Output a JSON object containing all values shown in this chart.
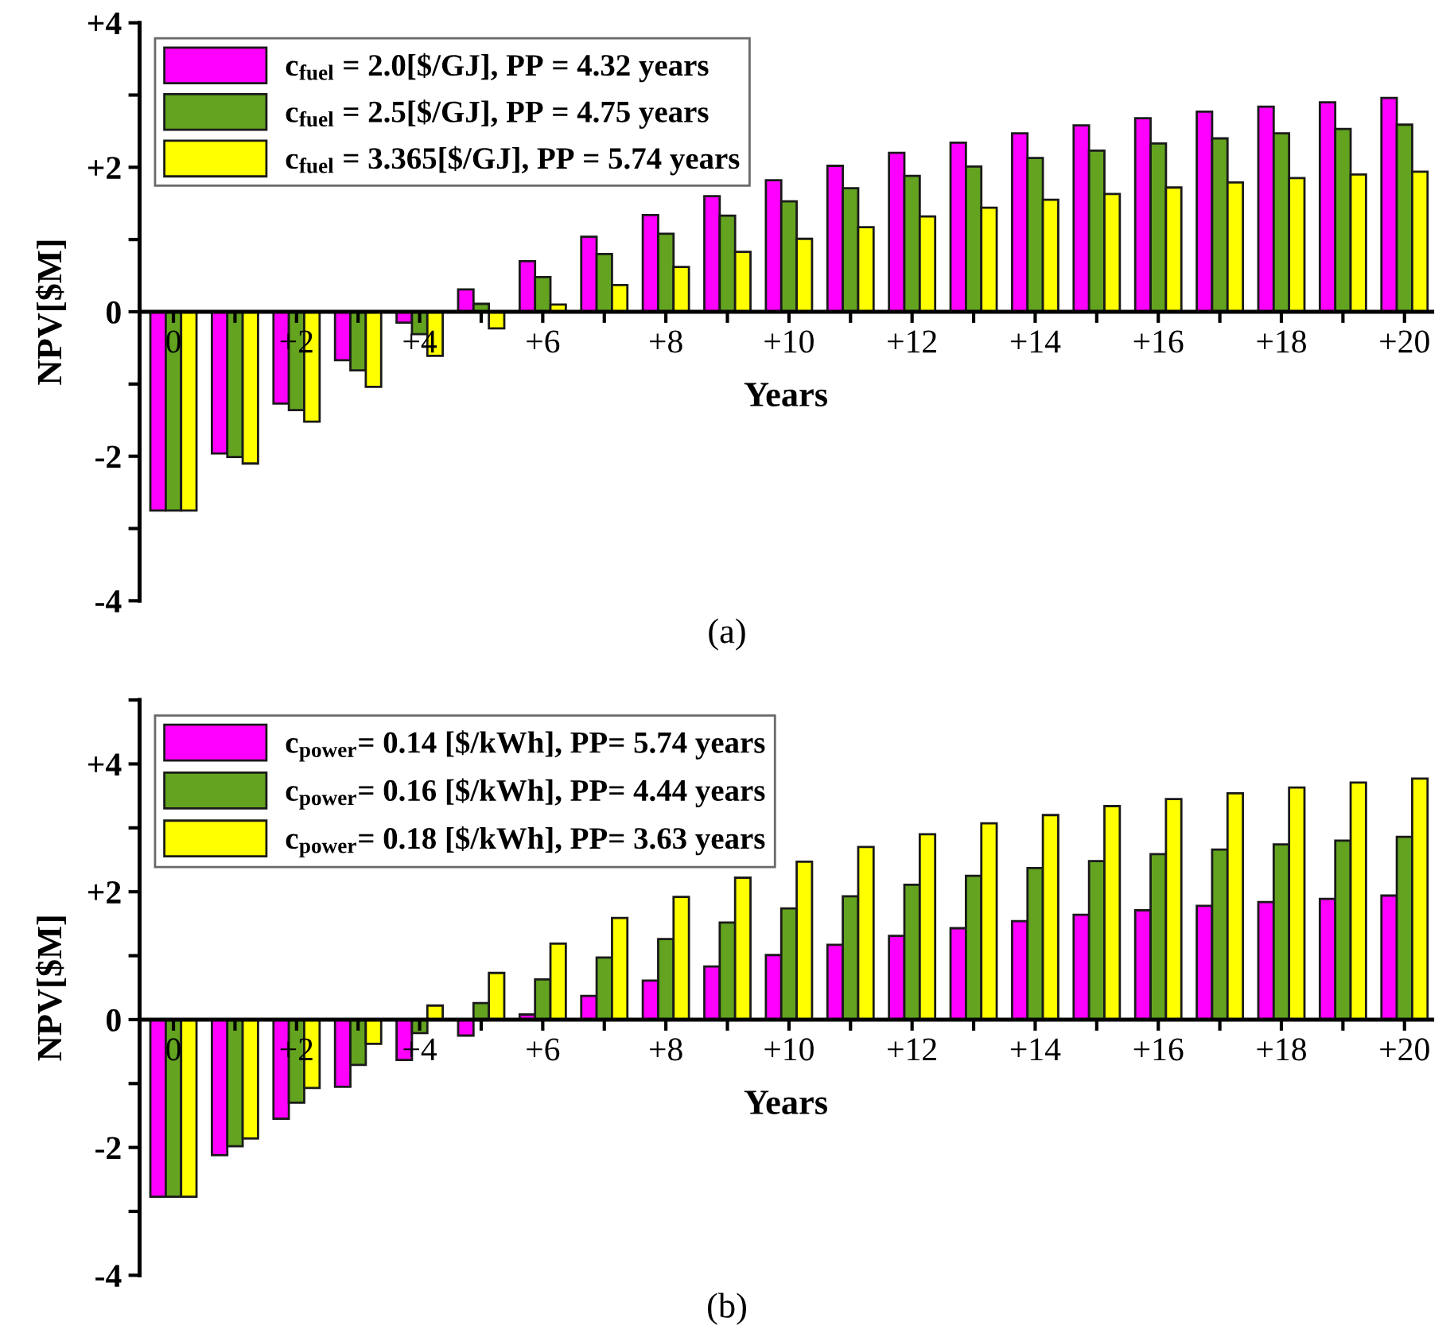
{
  "chart_data": [
    {
      "type": "bar",
      "xlabel": "Years",
      "ylabel": "NPV[$M]",
      "annotations": [
        "(a)"
      ],
      "legend": "top left",
      "x": [
        0,
        1,
        2,
        3,
        4,
        5,
        6,
        7,
        8,
        9,
        10,
        11,
        12,
        13,
        14,
        15,
        16,
        17,
        18,
        19,
        20
      ],
      "series": [
        {
          "name": "c$_{fuel}$ = 2.0[$/GJ], PP = 4.32 years",
          "color": "#ff00ff",
          "values": [
            -2.75,
            -1.96,
            -1.27,
            -0.67,
            -0.15,
            0.31,
            0.7,
            1.04,
            1.34,
            1.6,
            1.82,
            2.02,
            2.2,
            2.34,
            2.47,
            2.58,
            2.68,
            2.77,
            2.84,
            2.9,
            2.96
          ]
        },
        {
          "name": "c$_{fuel}$ = 2.5[$/GJ], PP = 4.75 years",
          "color": "#63a31f",
          "values": [
            -2.75,
            -2.01,
            -1.36,
            -0.81,
            -0.31,
            0.11,
            0.48,
            0.8,
            1.08,
            1.33,
            1.53,
            1.71,
            1.88,
            2.01,
            2.13,
            2.23,
            2.33,
            2.4,
            2.47,
            2.53,
            2.59
          ]
        },
        {
          "name": "c$_{fuel}$ = 3.365[$/GJ], PP = 5.74 years",
          "color": "#ffff00",
          "values": [
            -2.75,
            -2.1,
            -1.52,
            -1.04,
            -0.61,
            -0.23,
            0.1,
            0.37,
            0.62,
            0.83,
            1.01,
            1.17,
            1.32,
            1.44,
            1.55,
            1.63,
            1.72,
            1.79,
            1.85,
            1.9,
            1.94
          ]
        }
      ],
      "xlim": [
        -0.55,
        20.45
      ],
      "xticks": [
        {
          "value": 0,
          "label": "0"
        },
        {
          "value": 1,
          "label": null
        },
        {
          "value": 2,
          "label": "+2"
        },
        {
          "value": 3,
          "label": null
        },
        {
          "value": 4,
          "label": "+4"
        },
        {
          "value": 5,
          "label": null
        },
        {
          "value": 6,
          "label": "+6"
        },
        {
          "value": 7,
          "label": null
        },
        {
          "value": 8,
          "label": "+8"
        },
        {
          "value": 9,
          "label": null
        },
        {
          "value": 10,
          "label": "+10"
        },
        {
          "value": 11,
          "label": null
        },
        {
          "value": 12,
          "label": "+12"
        },
        {
          "value": 13,
          "label": null
        },
        {
          "value": 14,
          "label": "+14"
        },
        {
          "value": 15,
          "label": null
        },
        {
          "value": 16,
          "label": "+16"
        },
        {
          "value": 17,
          "label": null
        },
        {
          "value": 18,
          "label": "+18"
        },
        {
          "value": 19,
          "label": null
        },
        {
          "value": 20,
          "label": "+20"
        }
      ],
      "ylim": [
        -4,
        4
      ],
      "yticks": [
        {
          "value": -4,
          "label": "-4"
        },
        {
          "value": -3,
          "label": null
        },
        {
          "value": -2,
          "label": "-2"
        },
        {
          "value": -1,
          "label": null
        },
        {
          "value": 0,
          "label": "0"
        },
        {
          "value": 1,
          "label": null
        },
        {
          "value": 2,
          "label": "+2"
        },
        {
          "value": 3,
          "label": null
        },
        {
          "value": 4,
          "label": "+4"
        }
      ]
    },
    {
      "type": "bar",
      "xlabel": "Years",
      "ylabel": "NPV[$M]",
      "annotations": [
        "(b)"
      ],
      "legend": "top left",
      "x": [
        0,
        1,
        2,
        3,
        4,
        5,
        6,
        7,
        8,
        9,
        10,
        11,
        12,
        13,
        14,
        15,
        16,
        17,
        18,
        19,
        20
      ],
      "series": [
        {
          "name": "c$_{power}$= 0.14 [$/kWh], PP= 5.74 years",
          "color": "#ff00ff",
          "values": [
            -2.77,
            -2.12,
            -1.55,
            -1.05,
            -0.63,
            -0.25,
            0.08,
            0.37,
            0.61,
            0.83,
            1.01,
            1.17,
            1.31,
            1.43,
            1.54,
            1.64,
            1.71,
            1.78,
            1.84,
            1.89,
            1.94
          ]
        },
        {
          "name": "c$_{power}$= 0.16 [$/kWh], PP= 4.44 years",
          "color": "#63a31f",
          "values": [
            -2.77,
            -1.98,
            -1.3,
            -0.71,
            -0.21,
            0.26,
            0.63,
            0.97,
            1.26,
            1.52,
            1.74,
            1.93,
            2.11,
            2.25,
            2.37,
            2.48,
            2.59,
            2.66,
            2.74,
            2.8,
            2.86
          ]
        },
        {
          "name": "c$_{power}$= 0.18 [$/kWh], PP= 3.63 years",
          "color": "#ffff00",
          "values": [
            -2.77,
            -1.86,
            -1.07,
            -0.38,
            0.22,
            0.73,
            1.19,
            1.59,
            1.92,
            2.22,
            2.47,
            2.7,
            2.9,
            3.07,
            3.2,
            3.34,
            3.45,
            3.54,
            3.63,
            3.71,
            3.77
          ]
        }
      ],
      "xlim": [
        -0.55,
        20.45
      ],
      "xticks": [
        {
          "value": 0,
          "label": "0"
        },
        {
          "value": 1,
          "label": null
        },
        {
          "value": 2,
          "label": "+2"
        },
        {
          "value": 3,
          "label": null
        },
        {
          "value": 4,
          "label": "+4"
        },
        {
          "value": 5,
          "label": null
        },
        {
          "value": 6,
          "label": "+6"
        },
        {
          "value": 7,
          "label": null
        },
        {
          "value": 8,
          "label": "+8"
        },
        {
          "value": 9,
          "label": null
        },
        {
          "value": 10,
          "label": "+10"
        },
        {
          "value": 11,
          "label": null
        },
        {
          "value": 12,
          "label": "+12"
        },
        {
          "value": 13,
          "label": null
        },
        {
          "value": 14,
          "label": "+14"
        },
        {
          "value": 15,
          "label": null
        },
        {
          "value": 16,
          "label": "+16"
        },
        {
          "value": 17,
          "label": null
        },
        {
          "value": 18,
          "label": "+18"
        },
        {
          "value": 19,
          "label": null
        },
        {
          "value": 20,
          "label": "+20"
        }
      ],
      "ylim": [
        -4,
        5
      ],
      "yticks": [
        {
          "value": -4,
          "label": "-4"
        },
        {
          "value": -3,
          "label": null
        },
        {
          "value": -2,
          "label": "-2"
        },
        {
          "value": -1,
          "label": null
        },
        {
          "value": 0,
          "label": "0"
        },
        {
          "value": 1,
          "label": null
        },
        {
          "value": 2,
          "label": "+2"
        },
        {
          "value": 3,
          "label": null
        },
        {
          "value": 4,
          "label": "+4"
        },
        {
          "value": 5,
          "label": null
        }
      ]
    }
  ]
}
